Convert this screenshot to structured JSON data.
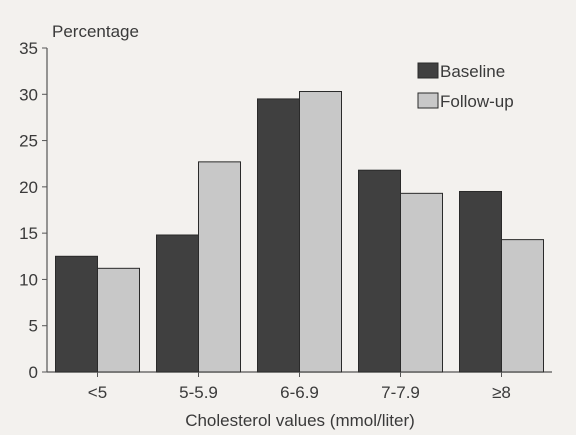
{
  "chart_data": {
    "type": "bar",
    "ylabel": "Percentage",
    "xlabel": "Cholesterol values (mmol/liter)",
    "categories": [
      "<5",
      "5-5.9",
      "6-6.9",
      "7-7.9",
      "≥8"
    ],
    "series": [
      {
        "name": "Baseline",
        "values": [
          12.5,
          14.8,
          29.5,
          21.8,
          19.5
        ]
      },
      {
        "name": "Follow-up",
        "values": [
          11.2,
          22.7,
          30.3,
          19.3,
          14.3
        ]
      }
    ],
    "ylim": [
      0,
      35
    ],
    "yticks": [
      "0",
      "5",
      "10",
      "15",
      "20",
      "25",
      "30",
      "35"
    ],
    "legend_position": "top-right",
    "colors": {
      "Baseline": "#404040",
      "Follow-up": "#c8c8c8",
      "edge": "#2a2a2a"
    },
    "grid": false
  }
}
